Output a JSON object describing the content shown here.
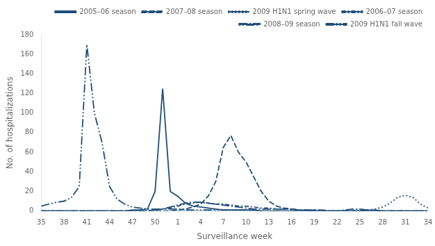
{
  "chart_data": {
    "type": "line",
    "xlabel": "Surveillance week",
    "ylabel": "No. of hospitalizations",
    "categories": [
      "35",
      null,
      null,
      "38",
      null,
      null,
      "41",
      null,
      null,
      "44",
      null,
      null,
      "47",
      null,
      null,
      "50",
      null,
      null,
      "1",
      null,
      null,
      "4",
      null,
      null,
      "7",
      null,
      null,
      "10",
      null,
      null,
      "13",
      null,
      null,
      "16",
      null,
      null,
      "19",
      null,
      null,
      "22",
      null,
      null,
      "25",
      null,
      null,
      "28",
      null,
      null,
      "31",
      null,
      null,
      "34"
    ],
    "ylim": [
      0,
      180
    ],
    "yticks": [
      0,
      20,
      40,
      60,
      80,
      100,
      120,
      140,
      160,
      180
    ],
    "grid": false,
    "legend": "upper right",
    "series": [
      {
        "name": "2005–06 season",
        "color": "#1f4e79",
        "line_style": "solid",
        "values": [
          0,
          0,
          0,
          0,
          0,
          0,
          0,
          0,
          0,
          0,
          0,
          0,
          1,
          1,
          2,
          20,
          125,
          20,
          15,
          8,
          5,
          4,
          3,
          2,
          1,
          1,
          1,
          1,
          1,
          0,
          0,
          0,
          0,
          0,
          0,
          0,
          0,
          0,
          0,
          0,
          0,
          0,
          0,
          0,
          0,
          0,
          0,
          0,
          0,
          0,
          0,
          0
        ]
      },
      {
        "name": "2007–08 season",
        "color": "#1f4e79",
        "line_style": "dashed",
        "values": [
          0,
          0,
          0,
          0,
          0,
          0,
          0,
          0,
          0,
          0,
          0,
          0,
          0,
          0,
          0,
          0,
          0,
          0,
          1,
          2,
          4,
          7,
          15,
          30,
          65,
          77,
          60,
          50,
          35,
          20,
          10,
          5,
          3,
          2,
          1,
          0,
          0,
          0,
          0,
          0,
          0,
          0,
          0,
          0,
          0,
          0,
          0,
          0,
          0,
          0,
          0,
          0
        ]
      },
      {
        "name": "2009 H1N1 spring wave",
        "color": "#1f4e79",
        "line_style": "dotted",
        "values": [
          0,
          0,
          0,
          0,
          0,
          0,
          0,
          0,
          0,
          0,
          0,
          0,
          0,
          0,
          0,
          0,
          0,
          0,
          0,
          0,
          0,
          0,
          0,
          0,
          0,
          0,
          0,
          0,
          0,
          0,
          0,
          0,
          0,
          0,
          0,
          0,
          0,
          0,
          0,
          0,
          0,
          0,
          0,
          1,
          2,
          4,
          8,
          14,
          16,
          14,
          7,
          3
        ]
      },
      {
        "name": "2006–07 season",
        "color": "#1f4e79",
        "line_style": "dashdot",
        "values": [
          0,
          0,
          0,
          0,
          0,
          0,
          0,
          0,
          0,
          0,
          0,
          0,
          0,
          0,
          0,
          1,
          2,
          3,
          5,
          7,
          8,
          9,
          8,
          7,
          7,
          6,
          5,
          5,
          4,
          3,
          3,
          2,
          2,
          2,
          1,
          1,
          1,
          0,
          0,
          0,
          0,
          0,
          1,
          1,
          0,
          0,
          0,
          0,
          0,
          0,
          0,
          0
        ]
      },
      {
        "name": "2008–09 season",
        "color": "#1f4e79",
        "line_style": "longdashdot",
        "values": [
          0,
          0,
          0,
          0,
          0,
          0,
          0,
          0,
          0,
          0,
          0,
          0,
          0,
          0,
          0,
          1,
          2,
          4,
          6,
          8,
          9,
          9,
          8,
          7,
          6,
          5,
          4,
          3,
          2,
          2,
          2,
          2,
          2,
          2,
          1,
          1,
          1,
          1,
          0,
          0,
          1,
          2,
          2,
          1,
          1,
          0,
          0,
          0,
          0,
          0,
          0,
          0
        ]
      },
      {
        "name": "2009 H1N1 fall wave",
        "color": "#1f4e79",
        "line_style": "dashdotdot",
        "values": [
          5,
          7,
          9,
          10,
          14,
          25,
          170,
          100,
          70,
          25,
          12,
          7,
          4,
          3,
          2,
          2,
          2,
          2,
          2,
          1,
          1,
          1,
          1,
          1,
          1,
          1,
          1,
          1,
          0,
          0,
          0,
          0,
          0,
          0,
          0,
          0,
          0,
          0,
          0,
          0,
          0,
          0,
          0,
          0,
          0,
          0,
          0,
          0,
          0,
          0,
          0,
          0
        ]
      }
    ]
  }
}
